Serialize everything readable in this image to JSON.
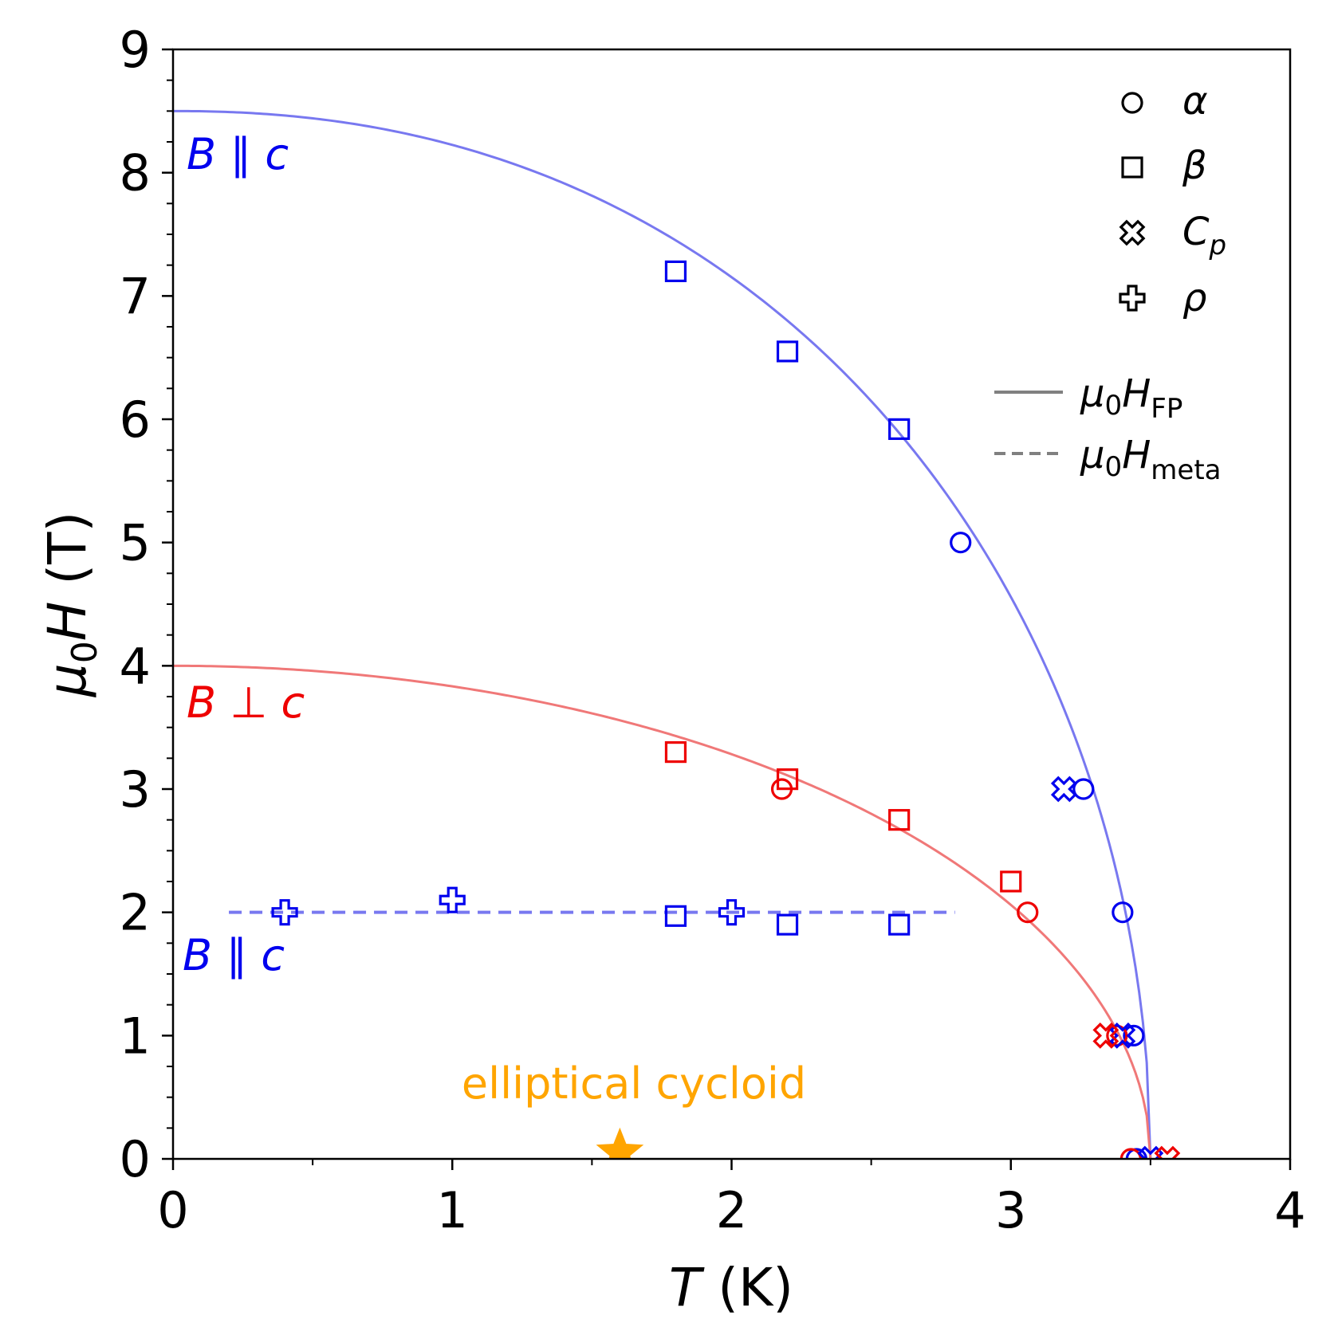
{
  "chart_data": {
    "type": "scatter",
    "title": "",
    "xlabel": {
      "symbol": "T",
      "unit": "(K)"
    },
    "ylabel": {
      "symbol": "μ",
      "subscript": "0",
      "symbol2": "H",
      "unit": "(T)"
    },
    "xlim": [
      0,
      4
    ],
    "ylim": [
      0,
      9
    ],
    "xticks": [
      0,
      1,
      2,
      3,
      4
    ],
    "yticks": [
      0,
      1,
      2,
      3,
      4,
      5,
      6,
      7,
      8,
      9
    ],
    "grid": false,
    "colors": {
      "blue": "#0000ee",
      "red": "#ee0000",
      "blue_line": "#7878f0",
      "red_line": "#f07878",
      "orange": "#ffa500",
      "gray": "#808080"
    },
    "lines": [
      {
        "name": "FP B||c",
        "style": "solid",
        "color": "blue_line",
        "model": "phase_boundary",
        "H0": 8.5,
        "Tc": 3.5,
        "n": 2.2
      },
      {
        "name": "FP B perp c",
        "style": "solid",
        "color": "red_line",
        "model": "phase_boundary",
        "H0": 4.0,
        "Tc": 3.5,
        "n": 2.0
      },
      {
        "name": "meta B||c",
        "style": "dashed",
        "color": "blue_line",
        "model": "constant",
        "value": 2.0,
        "x_range": [
          0.2,
          2.8
        ]
      }
    ],
    "series": [
      {
        "name": "alpha B||c",
        "marker": "circle",
        "color": "blue",
        "points": [
          [
            2.82,
            5.0
          ],
          [
            3.26,
            3.0
          ],
          [
            3.4,
            2.0
          ],
          [
            3.44,
            1.0
          ],
          [
            3.45,
            0.0
          ]
        ]
      },
      {
        "name": "alpha B perp c",
        "marker": "circle",
        "color": "red",
        "points": [
          [
            2.18,
            3.0
          ],
          [
            3.06,
            2.0
          ],
          [
            3.38,
            1.0
          ],
          [
            3.43,
            0.0
          ]
        ]
      },
      {
        "name": "beta B||c",
        "marker": "square",
        "color": "blue",
        "points": [
          [
            1.8,
            7.2
          ],
          [
            2.2,
            6.55
          ],
          [
            2.6,
            5.92
          ],
          [
            1.8,
            1.97
          ],
          [
            2.2,
            1.9
          ],
          [
            2.6,
            1.9
          ]
        ]
      },
      {
        "name": "beta B perp c",
        "marker": "square",
        "color": "red",
        "points": [
          [
            1.8,
            3.3
          ],
          [
            2.2,
            3.08
          ],
          [
            2.6,
            2.75
          ],
          [
            3.0,
            2.25
          ]
        ]
      },
      {
        "name": "Cp B||c",
        "marker": "xmark",
        "color": "blue",
        "points": [
          [
            3.19,
            3.0
          ],
          [
            3.4,
            1.0
          ],
          [
            3.5,
            0.0
          ]
        ]
      },
      {
        "name": "Cp B perp c",
        "marker": "xmark",
        "color": "red",
        "points": [
          [
            3.34,
            1.0
          ],
          [
            3.56,
            0.0
          ]
        ]
      },
      {
        "name": "rho B||c",
        "marker": "plus",
        "color": "blue",
        "points": [
          [
            0.4,
            2.0
          ],
          [
            1.0,
            2.1
          ],
          [
            2.0,
            2.0
          ]
        ]
      }
    ],
    "star": {
      "marker": "star",
      "color": "orange",
      "point": [
        1.6,
        0.0
      ]
    },
    "annotations": [
      {
        "id": "bpar-top",
        "symbol": "B",
        "relation": "∥",
        "axis": "c",
        "color": "blue"
      },
      {
        "id": "bperp",
        "symbol": "B",
        "relation": "⊥",
        "axis": "c",
        "color": "red"
      },
      {
        "id": "bpar-low",
        "symbol": "B",
        "relation": "∥",
        "axis": "c",
        "color": "blue"
      },
      {
        "id": "phase",
        "text": "elliptical cycloid",
        "color": "orange"
      }
    ],
    "legend": {
      "placement": "top-right",
      "markers": [
        {
          "marker": "circle",
          "label": "α"
        },
        {
          "marker": "square",
          "label": "β"
        },
        {
          "marker": "xmark",
          "label": "C",
          "sub": "p"
        },
        {
          "marker": "plus",
          "label": "ρ"
        }
      ],
      "lines": [
        {
          "style": "solid",
          "label": "μ",
          "sub0": "0",
          "label2": "H",
          "sub": "FP"
        },
        {
          "style": "dashed",
          "label": "μ",
          "sub0": "0",
          "label2": "H",
          "sub": "meta"
        }
      ]
    }
  }
}
